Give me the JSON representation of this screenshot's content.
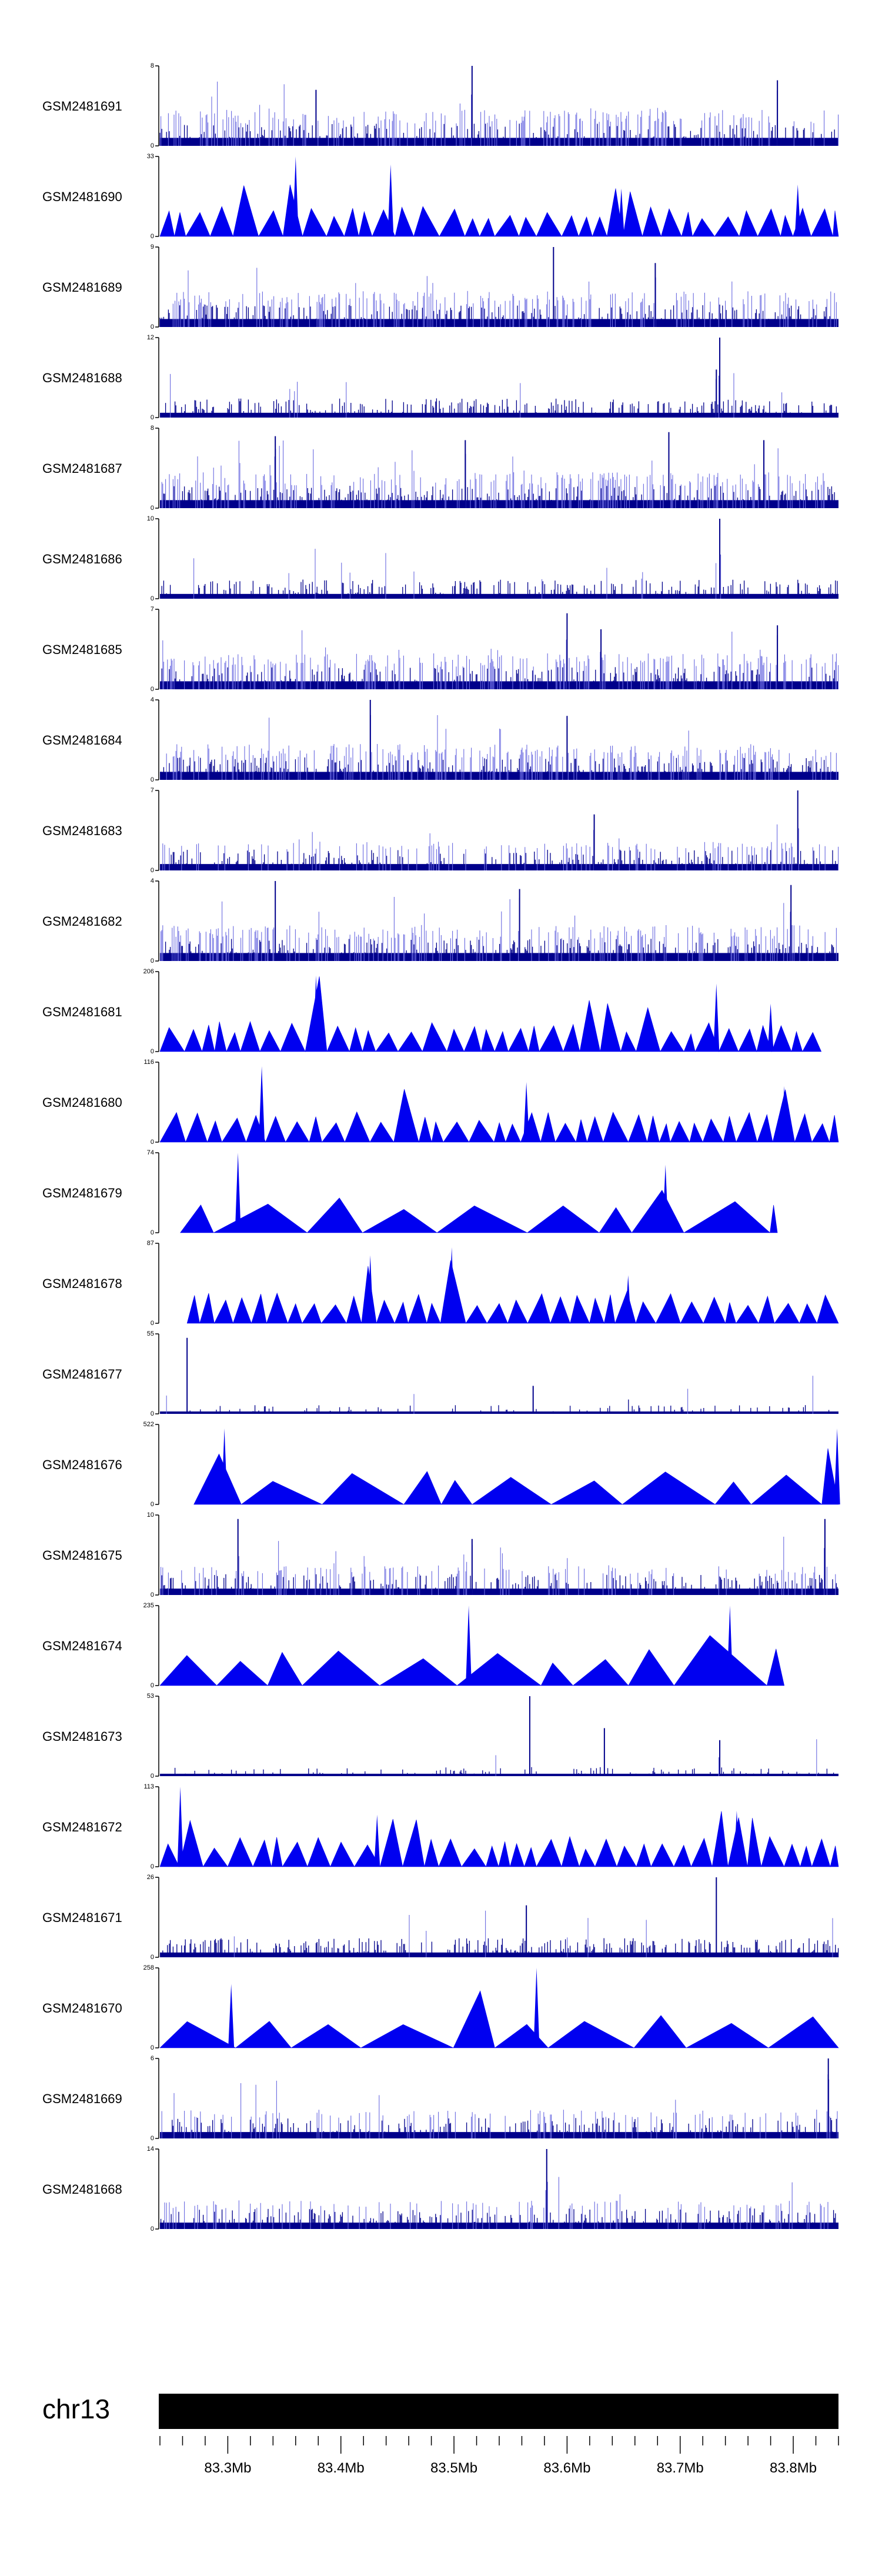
{
  "chart_data": {
    "type": "area",
    "tracks": [
      {
        "name": "GSM2481691",
        "ymax": 8,
        "style": "dense",
        "seed": 11,
        "peaks": [
          [
            0.46,
            1.0
          ],
          [
            0.91,
            0.82
          ],
          [
            0.23,
            0.7
          ]
        ]
      },
      {
        "name": "GSM2481690",
        "ymax": 33,
        "style": "tri",
        "seed": 12,
        "peaks": [
          [
            0.2,
            1.0
          ],
          [
            0.34,
            0.9
          ],
          [
            0.68,
            0.6
          ],
          [
            0.94,
            0.65
          ]
        ]
      },
      {
        "name": "GSM2481689",
        "ymax": 9,
        "style": "dense",
        "seed": 13,
        "peaks": [
          [
            0.58,
            1.0
          ],
          [
            0.73,
            0.8
          ]
        ]
      },
      {
        "name": "GSM2481688",
        "ymax": 12,
        "style": "dense-low",
        "seed": 14,
        "peaks": [
          [
            0.825,
            1.0
          ],
          [
            0.82,
            0.6
          ]
        ]
      },
      {
        "name": "GSM2481687",
        "ymax": 8,
        "style": "dense",
        "seed": 15,
        "peaks": [
          [
            0.75,
            0.95
          ],
          [
            0.17,
            0.9
          ],
          [
            0.45,
            0.85
          ],
          [
            0.89,
            0.85
          ]
        ]
      },
      {
        "name": "GSM2481686",
        "ymax": 10,
        "style": "dense-low",
        "seed": 16,
        "peaks": [
          [
            0.825,
            1.0
          ]
        ]
      },
      {
        "name": "GSM2481685",
        "ymax": 7,
        "style": "dense",
        "seed": 17,
        "peaks": [
          [
            0.6,
            0.95
          ],
          [
            0.65,
            0.75
          ],
          [
            0.91,
            0.8
          ]
        ]
      },
      {
        "name": "GSM2481684",
        "ymax": 4,
        "style": "dense",
        "seed": 18,
        "peaks": [
          [
            0.31,
            1.0
          ],
          [
            0.6,
            0.8
          ]
        ]
      },
      {
        "name": "GSM2481683",
        "ymax": 7,
        "style": "dense-mid",
        "seed": 19,
        "peaks": [
          [
            0.94,
            1.0
          ],
          [
            0.64,
            0.7
          ]
        ]
      },
      {
        "name": "GSM2481682",
        "ymax": 4,
        "style": "dense",
        "seed": 20,
        "peaks": [
          [
            0.17,
            1.0
          ],
          [
            0.53,
            0.9
          ],
          [
            0.93,
            0.95
          ]
        ]
      },
      {
        "name": "GSM2481681",
        "ymax": 206,
        "style": "tri",
        "seed": 21,
        "range": [
          0.0,
          0.975
        ],
        "peaks": [
          [
            0.23,
            0.95
          ],
          [
            0.82,
            0.85
          ],
          [
            0.9,
            0.6
          ]
        ]
      },
      {
        "name": "GSM2481680",
        "ymax": 116,
        "style": "tri",
        "seed": 22,
        "peaks": [
          [
            0.15,
            0.95
          ],
          [
            0.54,
            0.75
          ],
          [
            0.92,
            0.7
          ]
        ]
      },
      {
        "name": "GSM2481679",
        "ymax": 74,
        "style": "tri-wide",
        "seed": 23,
        "range": [
          0.03,
          0.91
        ],
        "peaks": [
          [
            0.115,
            1.0
          ],
          [
            0.745,
            0.85
          ]
        ]
      },
      {
        "name": "GSM2481678",
        "ymax": 87,
        "style": "tri",
        "seed": 24,
        "range": [
          0.04,
          1.0
        ],
        "peaks": [
          [
            0.43,
            0.95
          ],
          [
            0.31,
            0.85
          ],
          [
            0.69,
            0.6
          ]
        ]
      },
      {
        "name": "GSM2481677",
        "ymax": 55,
        "style": "sparse",
        "seed": 25,
        "peaks": [
          [
            0.04,
            0.95
          ],
          [
            0.55,
            0.35
          ]
        ]
      },
      {
        "name": "GSM2481676",
        "ymax": 522,
        "style": "tri-wide",
        "seed": 26,
        "range": [
          0.05,
          1.0
        ],
        "peaks": [
          [
            0.095,
            0.95
          ],
          [
            0.998,
            0.95
          ]
        ]
      },
      {
        "name": "GSM2481675",
        "ymax": 10,
        "style": "dense-mid",
        "seed": 27,
        "peaks": [
          [
            0.115,
            0.95
          ],
          [
            0.98,
            0.95
          ],
          [
            0.46,
            0.7
          ]
        ]
      },
      {
        "name": "GSM2481674",
        "ymax": 235,
        "style": "tri-wide",
        "seed": 28,
        "range": [
          0.0,
          0.92
        ],
        "peaks": [
          [
            0.455,
            1.0
          ],
          [
            0.84,
            1.0
          ]
        ]
      },
      {
        "name": "GSM2481673",
        "ymax": 53,
        "style": "sparse",
        "seed": 29,
        "peaks": [
          [
            0.545,
            1.0
          ],
          [
            0.655,
            0.6
          ],
          [
            0.825,
            0.45
          ]
        ]
      },
      {
        "name": "GSM2481672",
        "ymax": 113,
        "style": "tri",
        "seed": 30,
        "peaks": [
          [
            0.03,
            1.0
          ],
          [
            0.85,
            0.7
          ],
          [
            0.32,
            0.65
          ]
        ]
      },
      {
        "name": "GSM2481671",
        "ymax": 26,
        "style": "dense-low",
        "seed": 31,
        "peaks": [
          [
            0.82,
            1.0
          ],
          [
            0.54,
            0.65
          ]
        ]
      },
      {
        "name": "GSM2481670",
        "ymax": 258,
        "style": "tri-wide",
        "seed": 32,
        "range": [
          0.0,
          1.0
        ],
        "peaks": [
          [
            0.555,
            1.0
          ],
          [
            0.105,
            0.8
          ]
        ]
      },
      {
        "name": "GSM2481669",
        "ymax": 6,
        "style": "dense-mid",
        "seed": 33,
        "peaks": [
          [
            0.985,
            1.0
          ]
        ]
      },
      {
        "name": "GSM2481668",
        "ymax": 14,
        "style": "dense-mid",
        "seed": 34,
        "peaks": [
          [
            0.57,
            1.0
          ]
        ]
      }
    ],
    "ideogram": {
      "chromosome": "chr13",
      "start_mb": 83.24,
      "end_mb": 83.84,
      "tick_labels": [
        "83.3Mb",
        "83.4Mb",
        "83.5Mb",
        "83.6Mb",
        "83.7Mb",
        "83.8Mb"
      ],
      "tick_values": [
        83.3,
        83.4,
        83.5,
        83.6,
        83.7,
        83.8
      ],
      "minor_ticks_per_major": 5
    },
    "colors": {
      "tri": "#0000f0",
      "dense_dark": "#00008b",
      "dense_light": "#6a6ae0",
      "axis": "#000000",
      "ideogram": "#000000"
    }
  }
}
